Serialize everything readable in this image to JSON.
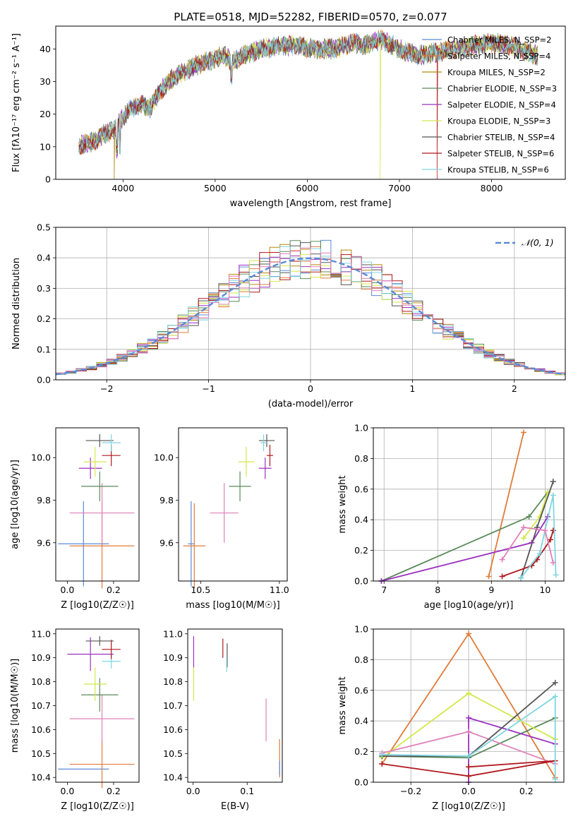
{
  "figure_title": "PLATE=0518, MJD=52282, FIBERID=0570, z=0.077",
  "colors": {
    "chabrier_miles": "#5b8bd6",
    "salpeter_miles": "#e07b39",
    "kroupa_miles": "#b8860b",
    "chabrier_elodie": "#5a8a5a",
    "salpeter_elodie": "#9b30c0",
    "kroupa_elodie": "#d4e84a",
    "chabrier_stelib": "#555555",
    "salpeter_stelib": "#b0181e",
    "kroupa_stelib": "#7fd6e0",
    "pink": "#e080b8",
    "normal_curve": "#5b8bd6"
  },
  "chart_data": [
    {
      "type": "line",
      "title": "PLATE=0518, MJD=52282, FIBERID=0570, z=0.077",
      "xlabel": "wavelength [Angstrom, rest frame]",
      "ylabel": "Flux [fλ10⁻¹⁷ erg cm⁻² s⁻¹ A⁻¹]",
      "xlim": [
        3270,
        8800
      ],
      "ylim": [
        0,
        47
      ],
      "xticks": [
        "4000",
        "5000",
        "6000",
        "7000",
        "8000"
      ],
      "yticks": [
        "0",
        "10",
        "20",
        "30",
        "40"
      ],
      "grid": false,
      "legend_position": "top-right",
      "series": [
        {
          "name": "Chabrier MILES, N_SSP=2",
          "key": "chabrier_miles"
        },
        {
          "name": "Salpeter MILES, N_SSP=4",
          "key": "salpeter_miles"
        },
        {
          "name": "Kroupa MILES, N_SSP=2",
          "key": "kroupa_miles"
        },
        {
          "name": "Chabrier ELODIE, N_SSP=3",
          "key": "chabrier_elodie"
        },
        {
          "name": "Salpeter ELODIE, N_SSP=4",
          "key": "salpeter_elodie"
        },
        {
          "name": "Kroupa ELODIE, N_SSP=3",
          "key": "kroupa_elodie"
        },
        {
          "name": "Chabrier STELIB, N_SSP=4",
          "key": "chabrier_stelib"
        },
        {
          "name": "Salpeter STELIB, N_SSP=6",
          "key": "salpeter_stelib"
        },
        {
          "name": "Kroupa STELIB, N_SSP=6",
          "key": "kroupa_stelib"
        }
      ],
      "continuum": [
        [
          3520,
          10
        ],
        [
          3600,
          11
        ],
        [
          3700,
          12
        ],
        [
          3800,
          14
        ],
        [
          3900,
          15
        ],
        [
          3950,
          17
        ],
        [
          4000,
          19
        ],
        [
          4100,
          22
        ],
        [
          4200,
          23
        ],
        [
          4300,
          22
        ],
        [
          4400,
          27
        ],
        [
          4500,
          30
        ],
        [
          4600,
          32
        ],
        [
          4800,
          35
        ],
        [
          5000,
          37
        ],
        [
          5100,
          38
        ],
        [
          5180,
          36
        ],
        [
          5300,
          38
        ],
        [
          5500,
          40
        ],
        [
          5700,
          41
        ],
        [
          5900,
          41
        ],
        [
          6100,
          40
        ],
        [
          6300,
          40
        ],
        [
          6500,
          42
        ],
        [
          6600,
          41
        ],
        [
          6800,
          43
        ],
        [
          7000,
          40
        ],
        [
          7200,
          38
        ],
        [
          7400,
          39
        ],
        [
          7600,
          40
        ],
        [
          7800,
          41
        ],
        [
          8000,
          42
        ],
        [
          8200,
          41
        ],
        [
          8400,
          39
        ],
        [
          8500,
          38
        ]
      ],
      "dropouts": [
        {
          "series": "kroupa_miles",
          "x": 3905
        },
        {
          "series": "kroupa_elodie",
          "x": 6790
        },
        {
          "series": "salpeter_stelib",
          "x": 7410
        }
      ]
    },
    {
      "type": "bar",
      "subtype": "step-histogram",
      "xlabel": "(data-model)/error",
      "ylabel": "Normed distribution",
      "xlim": [
        -2.5,
        2.5
      ],
      "ylim": [
        0,
        0.5
      ],
      "xticks": [
        "−2",
        "−1",
        "0",
        "1",
        "2"
      ],
      "yticks": [
        "0.0",
        "0.1",
        "0.2",
        "0.3",
        "0.4",
        "0.5"
      ],
      "grid": true,
      "legend_position": "top-right",
      "legend": "𝒩(0, 1)",
      "bins": 50,
      "bin_range": [
        -2.5,
        2.5
      ]
    },
    {
      "type": "scatter",
      "subtype": "errorbar",
      "xlabel": "Z [log10(Z/Z☉)]",
      "ylabel": "age  [log10(age/yr)]",
      "xlim": [
        -0.05,
        0.31
      ],
      "ylim": [
        9.42,
        10.14
      ],
      "xticks": [
        "0.0",
        "0.2"
      ],
      "yticks": [
        "9.6",
        "9.8",
        "10.0"
      ],
      "points": [
        {
          "key": "chabrier_miles",
          "x": 0.07,
          "y": 9.595,
          "xerr": 0.11,
          "yerr": 0.2
        },
        {
          "key": "salpeter_miles",
          "x": 0.15,
          "y": 9.585,
          "xerr": 0.14,
          "yerr": 0.2
        },
        {
          "key": "pink",
          "x": 0.15,
          "y": 9.74,
          "xerr": 0.14,
          "yerr": 0.14
        },
        {
          "key": "chabrier_elodie",
          "x": 0.14,
          "y": 9.865,
          "xerr": 0.08,
          "yerr": 0.07
        },
        {
          "key": "salpeter_elodie",
          "x": 0.1,
          "y": 9.95,
          "xerr": 0.05,
          "yerr": 0.05
        },
        {
          "key": "kroupa_elodie",
          "x": 0.12,
          "y": 9.98,
          "xerr": 0.05,
          "yerr": 0.07
        },
        {
          "key": "salpeter_stelib",
          "x": 0.19,
          "y": 10.01,
          "xerr": 0.04,
          "yerr": 0.05
        },
        {
          "key": "chabrier_stelib",
          "x": 0.14,
          "y": 10.08,
          "xerr": 0.06,
          "yerr": 0.03
        },
        {
          "key": "kroupa_stelib",
          "x": 0.19,
          "y": 10.07,
          "xerr": 0.04,
          "yerr": 0.04
        }
      ]
    },
    {
      "type": "scatter",
      "subtype": "errorbar",
      "xlabel": "mass [log10(M/M☉)]",
      "ylabel": "",
      "xlim": [
        10.36,
        11.05
      ],
      "ylim": [
        9.42,
        10.14
      ],
      "xticks": [
        "10.5",
        "11.0"
      ],
      "yticks": [
        "9.6",
        "9.8",
        "10.0"
      ],
      "points": [
        {
          "key": "chabrier_miles",
          "x": 10.44,
          "y": 9.595,
          "xerr": 0.02,
          "yerr": 0.2
        },
        {
          "key": "salpeter_miles",
          "x": 10.46,
          "y": 9.585,
          "xerr": 0.07,
          "yerr": 0.2
        },
        {
          "key": "pink",
          "x": 10.65,
          "y": 9.74,
          "xerr": 0.09,
          "yerr": 0.14
        },
        {
          "key": "chabrier_elodie",
          "x": 10.75,
          "y": 9.865,
          "xerr": 0.07,
          "yerr": 0.07
        },
        {
          "key": "salpeter_elodie",
          "x": 10.91,
          "y": 9.95,
          "xerr": 0.04,
          "yerr": 0.05
        },
        {
          "key": "kroupa_elodie",
          "x": 10.79,
          "y": 9.98,
          "xerr": 0.05,
          "yerr": 0.07
        },
        {
          "key": "salpeter_stelib",
          "x": 10.94,
          "y": 10.01,
          "xerr": 0.02,
          "yerr": 0.05
        },
        {
          "key": "chabrier_stelib",
          "x": 10.92,
          "y": 10.08,
          "xerr": 0.05,
          "yerr": 0.03
        },
        {
          "key": "kroupa_stelib",
          "x": 10.9,
          "y": 10.07,
          "xerr": 0.02,
          "yerr": 0.04
        }
      ]
    },
    {
      "type": "line",
      "xlabel": "age  [log10(age/yr)]",
      "ylabel": "mass weight",
      "xlim": [
        6.8,
        10.35
      ],
      "ylim": [
        0,
        1.0
      ],
      "xticks": [
        "7",
        "8",
        "9",
        "10"
      ],
      "yticks": [
        "0.0",
        "0.2",
        "0.4",
        "0.6",
        "0.8",
        "1.0"
      ],
      "grid": true,
      "series": [
        {
          "key": "salpeter_miles",
          "x": [
            8.95,
            9.6
          ],
          "y": [
            0.03,
            0.97
          ]
        },
        {
          "key": "chabrier_elodie",
          "x": [
            6.95,
            9.7,
            10.05
          ],
          "y": [
            0.0,
            0.42,
            0.58
          ]
        },
        {
          "key": "salpeter_elodie",
          "x": [
            6.95,
            9.75,
            10.05
          ],
          "y": [
            0.0,
            0.25,
            0.42
          ]
        },
        {
          "key": "kroupa_elodie",
          "x": [
            9.6,
            9.9,
            10.05
          ],
          "y": [
            0.28,
            0.42,
            0.58
          ]
        },
        {
          "key": "chabrier_stelib",
          "x": [
            9.55,
            9.85,
            10.15
          ],
          "y": [
            0.02,
            0.35,
            0.65
          ]
        },
        {
          "key": "salpeter_stelib",
          "x": [
            9.2,
            9.75,
            9.85,
            10.1,
            10.15
          ],
          "y": [
            0.03,
            0.1,
            0.14,
            0.27,
            0.33
          ]
        },
        {
          "key": "kroupa_stelib",
          "x": [
            9.55,
            9.9,
            10.15,
            10.2
          ],
          "y": [
            0.02,
            0.18,
            0.56,
            0.04
          ]
        },
        {
          "key": "pink",
          "x": [
            9.2,
            9.6,
            10.0,
            10.15
          ],
          "y": [
            0.14,
            0.35,
            0.33,
            0.12
          ]
        }
      ]
    },
    {
      "type": "scatter",
      "subtype": "errorbar",
      "xlabel": "Z [log10(Z/Z☉)]",
      "ylabel": "mass [log10(M/M☉)]",
      "xlim": [
        -0.05,
        0.31
      ],
      "ylim": [
        10.38,
        11.02
      ],
      "xticks": [
        "0.0",
        "0.2"
      ],
      "yticks": [
        "10.4",
        "10.5",
        "10.6",
        "10.7",
        "10.8",
        "10.9",
        "11.0"
      ],
      "points": [
        {
          "key": "chabrier_miles",
          "x": 0.07,
          "y": 10.435,
          "xerr": 0.11,
          "yerr": 0.0
        },
        {
          "key": "salpeter_miles",
          "x": 0.15,
          "y": 10.455,
          "xerr": 0.14,
          "yerr": 0.1
        },
        {
          "key": "pink",
          "x": 0.15,
          "y": 10.645,
          "xerr": 0.14,
          "yerr": 0.1
        },
        {
          "key": "chabrier_elodie",
          "x": 0.14,
          "y": 10.745,
          "xerr": 0.08,
          "yerr": 0.07
        },
        {
          "key": "kroupa_elodie",
          "x": 0.12,
          "y": 10.79,
          "xerr": 0.05,
          "yerr": 0.07
        },
        {
          "key": "salpeter_elodie",
          "x": 0.1,
          "y": 10.915,
          "xerr": 0.1,
          "yerr": 0.07
        },
        {
          "key": "kroupa_stelib",
          "x": 0.19,
          "y": 10.885,
          "xerr": 0.04,
          "yerr": 0.03
        },
        {
          "key": "salpeter_stelib",
          "x": 0.19,
          "y": 10.935,
          "xerr": 0.04,
          "yerr": 0.04
        },
        {
          "key": "chabrier_stelib",
          "x": 0.14,
          "y": 10.97,
          "xerr": 0.06,
          "yerr": 0.02
        }
      ]
    },
    {
      "type": "scatter",
      "subtype": "errorbar",
      "xlabel": "E(B-V)",
      "ylabel": "",
      "xlim": [
        -0.01,
        0.165
      ],
      "ylim": [
        10.38,
        11.02
      ],
      "xticks": [
        "0.0",
        "0.1"
      ],
      "yticks": [
        "10.4",
        "10.5",
        "10.6",
        "10.7",
        "10.8",
        "10.9",
        "11.0"
      ],
      "points": [
        {
          "key": "salpeter_elodie",
          "x": 0.001,
          "y": 10.92,
          "xerr": 0.0,
          "yerr": 0.07
        },
        {
          "key": "kroupa_elodie",
          "x": 0.001,
          "y": 10.79,
          "xerr": 0.0,
          "yerr": 0.07
        },
        {
          "key": "salpeter_stelib",
          "x": 0.055,
          "y": 10.94,
          "xerr": 0.0,
          "yerr": 0.04
        },
        {
          "key": "chabrier_stelib",
          "x": 0.063,
          "y": 10.91,
          "xerr": 0.0,
          "yerr": 0.05
        },
        {
          "key": "kroupa_stelib",
          "x": 0.062,
          "y": 10.87,
          "xerr": 0.0,
          "yerr": 0.03
        },
        {
          "key": "pink",
          "x": 0.135,
          "y": 10.64,
          "xerr": 0.0,
          "yerr": 0.09
        },
        {
          "key": "salpeter_miles",
          "x": 0.16,
          "y": 10.48,
          "xerr": 0.0,
          "yerr": 0.08
        },
        {
          "key": "chabrier_miles",
          "x": 0.16,
          "y": 10.44,
          "xerr": 0.0,
          "yerr": 0.03
        }
      ]
    },
    {
      "type": "line",
      "xlabel": "Z [log10(Z/Z☉)]",
      "ylabel": "mass weight",
      "xlim": [
        -0.33,
        0.33
      ],
      "ylim": [
        0,
        1.0
      ],
      "xticks": [
        "−0.2",
        "0.0",
        "0.2"
      ],
      "yticks": [
        "0.0",
        "0.2",
        "0.4",
        "0.6",
        "0.8",
        "1.0"
      ],
      "grid": true,
      "series": [
        {
          "key": "salpeter_miles",
          "x": [
            -0.3,
            0.0,
            0.3
          ],
          "y": [
            0.12,
            0.97,
            0.03
          ]
        },
        {
          "key": "chabrier_elodie",
          "x": [
            -0.3,
            0.0,
            0.3
          ],
          "y": [
            0.17,
            0.16,
            0.42
          ]
        },
        {
          "key": "salpeter_elodie",
          "x": [
            0.0,
            0.0,
            0.3
          ],
          "y": [
            0.0,
            0.42,
            0.25
          ]
        },
        {
          "key": "kroupa_elodie",
          "x": [
            -0.3,
            0.0,
            0.3
          ],
          "y": [
            0.16,
            0.58,
            0.28
          ]
        },
        {
          "key": "pink",
          "x": [
            -0.3,
            0.0,
            0.3
          ],
          "y": [
            0.19,
            0.33,
            0.12
          ]
        },
        {
          "key": "chabrier_stelib",
          "x": [
            -0.3,
            0.0,
            0.3
          ],
          "y": [
            0.17,
            0.17,
            0.65
          ]
        },
        {
          "key": "salpeter_stelib",
          "x": [
            -0.3,
            0.0,
            0.3,
            0.0
          ],
          "y": [
            0.12,
            0.04,
            0.14,
            0.1
          ]
        },
        {
          "key": "kroupa_stelib",
          "x": [
            -0.3,
            0.0,
            0.3,
            0.3
          ],
          "y": [
            0.18,
            0.17,
            0.56,
            0.02
          ]
        }
      ]
    }
  ]
}
